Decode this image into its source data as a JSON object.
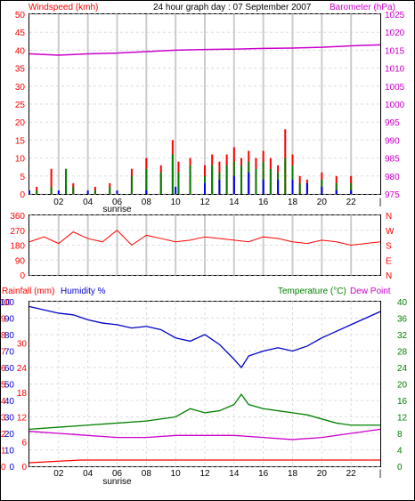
{
  "header": {
    "windspeed_label": "Windspeed (kmh)",
    "title": "24 hour graph day : 07 September 2007",
    "barometer_label": "Barometer (hPa)"
  },
  "lower_header": {
    "rain_label": "Rainfall (mm)",
    "humidity_label": "Humidity %",
    "temperature_label": "Temperature (°C)",
    "dewpoint_label": "Dew Point"
  },
  "x_ticks": [
    "02",
    "04",
    "06",
    "08",
    "10",
    "12",
    "14",
    "16",
    "18",
    "20",
    "22",
    "|"
  ],
  "sunrise_label": "sunrise",
  "colors": {
    "wind_gust": "#ff0000",
    "wind_avg": "#008000",
    "wind_low": "#0000ff",
    "barometer": "#cc00cc",
    "direction": "#ff0000",
    "humidity": "#0000cc",
    "temperature": "#008000",
    "dewpoint": "#cc00cc",
    "rain": "#ff0000"
  },
  "chart_data": [
    {
      "type": "bar",
      "name": "wind",
      "x_unit": "hour",
      "left_axis": {
        "label": "Windspeed (kmh)",
        "ylim": [
          0,
          50
        ],
        "ticks": [
          0,
          5,
          10,
          15,
          20,
          25,
          30,
          35,
          40,
          45,
          50
        ]
      },
      "right_axis": {
        "label": "Barometer (hPa)",
        "ylim": [
          975,
          1025
        ],
        "ticks": [
          975,
          980,
          985,
          990,
          995,
          1000,
          1005,
          1010,
          1015,
          1020,
          1025
        ]
      },
      "xlim": [
        0,
        24
      ],
      "series": [
        {
          "key": "gust",
          "x": [
            0.5,
            1.5,
            2.5,
            3.0,
            4.5,
            5.5,
            7.0,
            8.0,
            9.0,
            9.8,
            10.2,
            11.0,
            12.0,
            12.5,
            13.0,
            13.5,
            14.0,
            14.5,
            15.0,
            15.5,
            16.0,
            16.5,
            17.0,
            17.5,
            18.0,
            18.5,
            19.0,
            20.0,
            21.0,
            22.0
          ],
          "values": [
            2,
            7,
            5,
            3,
            2,
            3,
            7,
            10,
            8,
            15,
            9,
            10,
            8,
            11,
            9,
            11,
            13,
            10,
            12,
            10,
            12,
            10,
            8,
            18,
            11,
            5,
            4,
            6,
            5,
            5
          ]
        },
        {
          "key": "avg",
          "x": [
            0.5,
            1.5,
            2.5,
            3.0,
            4.5,
            5.5,
            7.0,
            8.0,
            9.0,
            9.8,
            10.2,
            11.0,
            12.0,
            12.5,
            13.0,
            13.5,
            14.0,
            14.5,
            15.0,
            15.5,
            16.0,
            16.5,
            17.0,
            17.5,
            18.0,
            18.5,
            19.0,
            20.0,
            21.0,
            22.0
          ],
          "values": [
            1,
            2,
            7,
            2,
            1,
            2,
            5,
            7,
            6,
            11,
            6,
            8,
            5,
            8,
            6,
            8,
            9,
            8,
            9,
            7,
            9,
            7,
            6,
            10,
            8,
            3,
            3,
            4,
            3,
            3
          ]
        },
        {
          "key": "low",
          "x": [
            0,
            2,
            4,
            6,
            8,
            10,
            12,
            13,
            14,
            15,
            16,
            17,
            18,
            19,
            20,
            21,
            22,
            23
          ],
          "values": [
            1,
            1,
            1,
            1,
            1,
            2,
            3,
            4,
            5,
            6,
            4,
            4,
            4,
            3,
            2,
            1,
            1,
            0
          ]
        },
        {
          "key": "barometer",
          "x": [
            0,
            1,
            2,
            4,
            6,
            8,
            10,
            12,
            14,
            16,
            18,
            20,
            22,
            24
          ],
          "values": [
            1014.0,
            1013.8,
            1013.6,
            1014.0,
            1014.2,
            1014.6,
            1015.0,
            1015.2,
            1015.3,
            1015.5,
            1015.6,
            1015.8,
            1016.2,
            1016.5
          ]
        }
      ]
    },
    {
      "type": "line",
      "name": "direction",
      "x_unit": "hour",
      "ylim": [
        0,
        360
      ],
      "ticks": [
        0,
        90,
        180,
        270,
        360
      ],
      "right_labels": [
        "N",
        "W",
        "S",
        "E",
        "N"
      ],
      "xlim": [
        0,
        24
      ],
      "x": [
        0,
        1,
        2,
        3,
        4,
        5,
        6,
        7,
        8,
        9,
        10,
        11,
        12,
        13,
        14,
        15,
        16,
        17,
        18,
        19,
        20,
        21,
        22,
        23,
        24
      ],
      "values": [
        200,
        230,
        190,
        260,
        220,
        200,
        270,
        180,
        240,
        220,
        200,
        210,
        230,
        220,
        210,
        200,
        230,
        220,
        200,
        190,
        210,
        200,
        180,
        190,
        200
      ]
    },
    {
      "type": "line",
      "name": "humidity-temp-rain",
      "x_unit": "hour",
      "xlim": [
        0,
        24
      ],
      "left_axes": {
        "rainfall": {
          "label": "Rainfall (mm)",
          "ticks": [
            0,
            1,
            2,
            3,
            4,
            5,
            6,
            7,
            8,
            9,
            10
          ]
        },
        "humidity": {
          "label": "Humidity %",
          "ylim": [
            0,
            100
          ],
          "ticks": [
            0,
            10,
            20,
            30,
            40,
            50,
            60,
            70,
            80,
            90,
            100
          ]
        },
        "temperature": {
          "ticks": [
            0,
            6,
            12,
            18,
            24,
            30
          ]
        }
      },
      "right_axis": {
        "label": "Temperature (°C)",
        "ylim": [
          0,
          40
        ],
        "ticks": [
          0,
          4,
          8,
          12,
          16,
          20,
          24,
          28,
          32,
          36,
          40
        ]
      },
      "series": [
        {
          "key": "humidity",
          "x": [
            0,
            1,
            2,
            3,
            4,
            5,
            6,
            7,
            8,
            9,
            10,
            11,
            12,
            13,
            14,
            14.5,
            15,
            16,
            17,
            18,
            19,
            20,
            21,
            22,
            23,
            24
          ],
          "values": [
            97,
            95,
            93,
            92,
            89,
            87,
            86,
            84,
            85,
            83,
            78,
            76,
            80,
            74,
            65,
            60,
            67,
            70,
            72,
            70,
            73,
            78,
            82,
            86,
            90,
            94
          ]
        },
        {
          "key": "temperature",
          "x": [
            0,
            2,
            4,
            6,
            8,
            10,
            11,
            12,
            13,
            14,
            14.5,
            15,
            16,
            17,
            18,
            19,
            20,
            21,
            22,
            23,
            24
          ],
          "values": [
            9.0,
            9.5,
            10.0,
            10.5,
            11.0,
            12.0,
            14.0,
            13.0,
            13.5,
            15.0,
            17.5,
            15.0,
            14.0,
            13.5,
            13.0,
            12.5,
            11.5,
            10.5,
            10.0,
            10.0,
            10.0
          ]
        },
        {
          "key": "dewpoint",
          "x": [
            0,
            2,
            4,
            6,
            8,
            10,
            12,
            14,
            16,
            18,
            20,
            22,
            24
          ],
          "values": [
            8.5,
            8.0,
            7.5,
            7.0,
            7.0,
            7.5,
            7.5,
            7.5,
            7.0,
            6.5,
            7.0,
            8.0,
            9.0
          ]
        },
        {
          "key": "rain",
          "x": [
            0,
            3.5,
            24
          ],
          "values": [
            0,
            0.2,
            0.2
          ]
        }
      ]
    }
  ]
}
